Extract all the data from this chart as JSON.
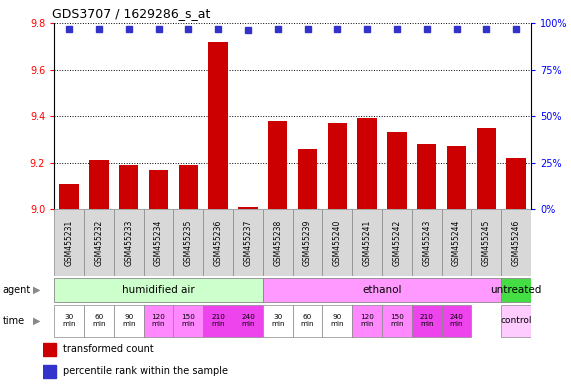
{
  "title": "GDS3707 / 1629286_s_at",
  "samples": [
    "GSM455231",
    "GSM455232",
    "GSM455233",
    "GSM455234",
    "GSM455235",
    "GSM455236",
    "GSM455237",
    "GSM455238",
    "GSM455239",
    "GSM455240",
    "GSM455241",
    "GSM455242",
    "GSM455243",
    "GSM455244",
    "GSM455245",
    "GSM455246"
  ],
  "bar_values": [
    9.11,
    9.21,
    9.19,
    9.17,
    9.19,
    9.72,
    9.01,
    9.38,
    9.26,
    9.37,
    9.39,
    9.33,
    9.28,
    9.27,
    9.35,
    9.22
  ],
  "percentile_values": [
    97,
    97,
    97,
    97,
    97,
    97,
    96,
    97,
    97,
    97,
    97,
    97,
    97,
    97,
    97,
    97
  ],
  "ylim_left": [
    9.0,
    9.8
  ],
  "ylim_right": [
    0,
    100
  ],
  "yticks_left": [
    9.0,
    9.2,
    9.4,
    9.6,
    9.8
  ],
  "yticks_right": [
    0,
    25,
    50,
    75,
    100
  ],
  "bar_color": "#cc0000",
  "dot_color": "#3333cc",
  "agent_groups": [
    {
      "label": "humidified air",
      "start": 0,
      "end": 7,
      "color": "#ccffcc"
    },
    {
      "label": "ethanol",
      "start": 7,
      "end": 15,
      "color": "#ff99ff"
    },
    {
      "label": "untreated",
      "start": 15,
      "end": 16,
      "color": "#44dd44"
    }
  ],
  "time_data": [
    {
      "idx": 0,
      "label": "30\nmin",
      "color": "#ffffff"
    },
    {
      "idx": 1,
      "label": "60\nmin",
      "color": "#ffffff"
    },
    {
      "idx": 2,
      "label": "90\nmin",
      "color": "#ffffff"
    },
    {
      "idx": 3,
      "label": "120\nmin",
      "color": "#ff88ff"
    },
    {
      "idx": 4,
      "label": "150\nmin",
      "color": "#ff88ff"
    },
    {
      "idx": 5,
      "label": "210\nmin",
      "color": "#ee44ee"
    },
    {
      "idx": 6,
      "label": "240\nmin",
      "color": "#ee44ee"
    },
    {
      "idx": 7,
      "label": "30\nmin",
      "color": "#ffffff"
    },
    {
      "idx": 8,
      "label": "60\nmin",
      "color": "#ffffff"
    },
    {
      "idx": 9,
      "label": "90\nmin",
      "color": "#ffffff"
    },
    {
      "idx": 10,
      "label": "120\nmin",
      "color": "#ff88ff"
    },
    {
      "idx": 11,
      "label": "150\nmin",
      "color": "#ff88ff"
    },
    {
      "idx": 12,
      "label": "210\nmin",
      "color": "#ee44ee"
    },
    {
      "idx": 13,
      "label": "240\nmin",
      "color": "#ee44ee"
    },
    {
      "idx": 15,
      "label": "control",
      "color": "#ffccff"
    }
  ],
  "fig_width": 5.71,
  "fig_height": 3.84,
  "dpi": 100
}
